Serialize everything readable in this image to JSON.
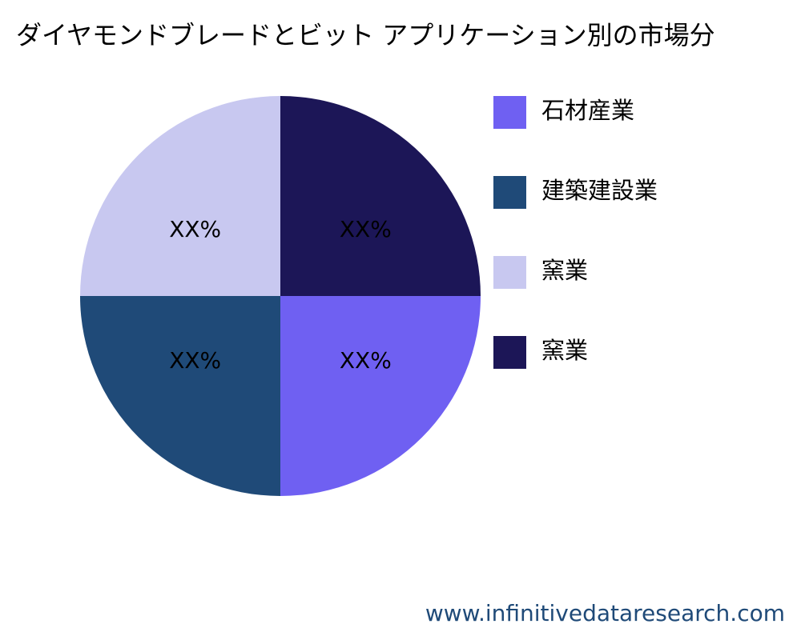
{
  "chart_data": {
    "type": "pie",
    "title": "ダイヤモンドブレードとビット アプリケーション別の市場分",
    "categories": [
      "石材産業",
      "建築建設業",
      "窯業",
      "窯業"
    ],
    "values": [
      25,
      25,
      25,
      25
    ],
    "value_labels": [
      "XX%",
      "XX%",
      "XX%",
      "XX%"
    ],
    "colors": [
      "#6f60f2",
      "#1f4a78",
      "#c8c8f0",
      "#1c1657"
    ],
    "legend": "right",
    "watermark": "www.infinitivedataresearch.com"
  }
}
